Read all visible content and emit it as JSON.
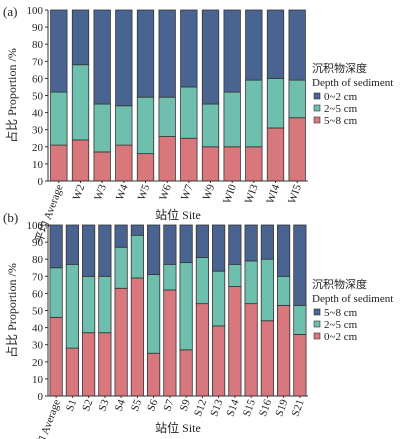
{
  "colors": {
    "pink": "#d9787c",
    "teal": "#6fbfae",
    "navy": "#4a6491",
    "stroke": "#333333"
  },
  "chart_data": [
    {
      "type": "bar",
      "stacked": true,
      "panel_label": "(a)",
      "ylabel": "占比 Proportion /%",
      "xlabel": "站位 Site",
      "ylim": [
        0,
        100
      ],
      "yticks": [
        0,
        10,
        20,
        30,
        40,
        50,
        60,
        70,
        80,
        90,
        100
      ],
      "grid": false,
      "legend_placement": "right",
      "categories": [
        "平均 Average",
        "W2",
        "W3",
        "W4",
        "W5",
        "W6",
        "W7",
        "W9",
        "WI0",
        "WI3",
        "WI4",
        "WI5"
      ],
      "legend_title_cn": "沉积物深度",
      "legend_title_en": "Depth of sediment",
      "series": [
        {
          "name": "5~8 cm",
          "color": "#d9787c",
          "values": [
            21,
            24,
            17,
            21,
            16,
            26,
            25,
            20,
            20,
            20,
            31,
            37
          ]
        },
        {
          "name": "2~5 cm",
          "color": "#6fbfae",
          "values": [
            31,
            44,
            28,
            23,
            33,
            23,
            30,
            25,
            32,
            39,
            29,
            22
          ]
        },
        {
          "name": "0~2 cm",
          "color": "#4a6491",
          "values": [
            48,
            32,
            55,
            56,
            51,
            51,
            45,
            55,
            48,
            41,
            40,
            41
          ]
        }
      ],
      "legend_order": [
        2,
        1,
        0
      ]
    },
    {
      "type": "bar",
      "stacked": true,
      "panel_label": "(b)",
      "ylabel": "占比 Proportion /%",
      "xlabel": "站位 Site",
      "ylim": [
        0,
        100
      ],
      "yticks": [
        0,
        10,
        20,
        30,
        40,
        50,
        60,
        70,
        80,
        90,
        100
      ],
      "grid": false,
      "legend_placement": "right",
      "categories": [
        "平均 Average",
        "S1",
        "S2",
        "S3",
        "S4",
        "S5",
        "S6",
        "S7",
        "S9",
        "S12",
        "S13",
        "S14",
        "S15",
        "S16",
        "S19",
        "S21"
      ],
      "legend_title_cn": "沉积物深度",
      "legend_title_en": "Depth of sediment",
      "series": [
        {
          "name": "0~2 cm",
          "color": "#d9787c",
          "values": [
            46,
            28,
            37,
            37,
            63,
            69,
            25,
            62,
            27,
            54,
            41,
            64,
            54,
            44,
            53,
            36
          ]
        },
        {
          "name": "2~5 cm",
          "color": "#6fbfae",
          "values": [
            29,
            49,
            33,
            33,
            24,
            25,
            46,
            15,
            51,
            27,
            32,
            13,
            25,
            36,
            17,
            17
          ]
        },
        {
          "name": "5~8 cm",
          "color": "#4a6491",
          "values": [
            25,
            23,
            30,
            30,
            13,
            6,
            29,
            23,
            22,
            19,
            27,
            23,
            21,
            20,
            30,
            47
          ]
        }
      ],
      "legend_order": [
        2,
        1,
        0
      ]
    }
  ]
}
